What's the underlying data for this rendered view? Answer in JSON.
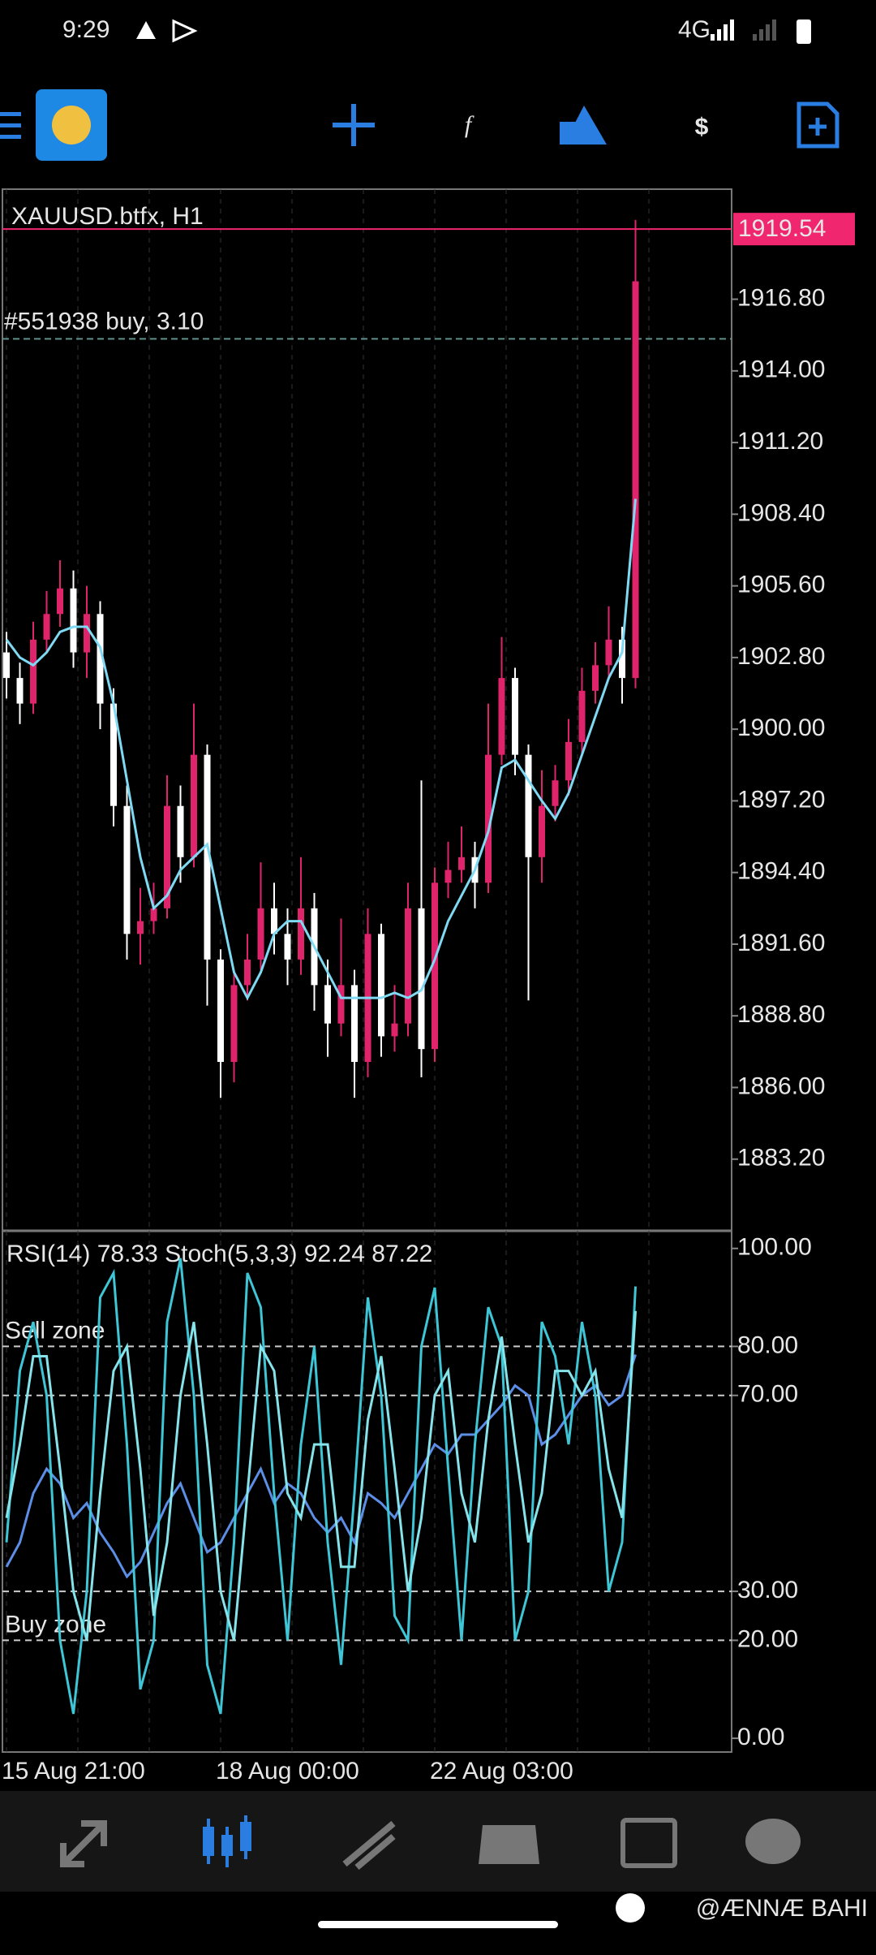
{
  "status_bar": {
    "time": "9:29",
    "network": "4G"
  },
  "chart_data": [
    {
      "type": "candlestick",
      "title": "XAUUSD.btfx, H1",
      "categories": [
        "15 Aug 21:00",
        null,
        null,
        null,
        null,
        null,
        null,
        null,
        null,
        null,
        null,
        null,
        null,
        null,
        null,
        null,
        "18 Aug 00:00",
        null,
        null,
        null,
        null,
        null,
        null,
        null,
        null,
        null,
        null,
        null,
        null,
        null,
        null,
        null,
        "22 Aug 03:00",
        null,
        null,
        null,
        null,
        null,
        null,
        null,
        null,
        null,
        null,
        null,
        null,
        null,
        null,
        null
      ],
      "open": [
        1903,
        1902,
        1901,
        1903.5,
        1904.5,
        1905.5,
        1903,
        1904.5,
        1901,
        1897,
        1892,
        1892.5,
        1893,
        1897,
        1895,
        1899,
        1891,
        1887,
        1890,
        1891,
        1893,
        1892,
        1891,
        1893,
        1890,
        1888.5,
        1890,
        1887,
        1892,
        1888,
        1888.5,
        1893,
        1887.5,
        1894,
        1894.5,
        1895,
        1894,
        1899,
        1902,
        1899,
        1895,
        1897,
        1898,
        1899.5,
        1901.5,
        1902.5,
        1903.5,
        1902
      ],
      "high": [
        1903.8,
        1902.6,
        1904.2,
        1905.4,
        1906.6,
        1906.2,
        1905.6,
        1905,
        1901.6,
        1897.8,
        1893.8,
        1894,
        1898.2,
        1897.8,
        1901,
        1899.4,
        1891.4,
        1890.6,
        1892,
        1894.8,
        1894,
        1893,
        1895,
        1893.6,
        1891,
        1892.6,
        1890.6,
        1893,
        1892.4,
        1890,
        1894,
        1898,
        1894.6,
        1895.6,
        1896.2,
        1895.6,
        1901,
        1903.6,
        1902.4,
        1899.4,
        1898.4,
        1898.6,
        1900.4,
        1902.4,
        1903.4,
        1904.8,
        1904,
        1919.9
      ],
      "low": [
        1901.2,
        1900.2,
        1900.6,
        1903,
        1904,
        1902.4,
        1902,
        1900,
        1896.2,
        1891,
        1890.8,
        1892,
        1892.6,
        1894,
        1894.6,
        1889.2,
        1885.6,
        1886.2,
        1889.4,
        1890.6,
        1891.2,
        1890,
        1890.4,
        1889,
        1887.2,
        1888,
        1885.6,
        1886.4,
        1887.2,
        1887.4,
        1888,
        1886.4,
        1887,
        1893.4,
        1894,
        1893,
        1893.6,
        1898.6,
        1898.2,
        1889.4,
        1894,
        1896.4,
        1897.4,
        1899,
        1901,
        1902,
        1901,
        1901.6
      ],
      "close": [
        1902,
        1901,
        1903.5,
        1904.5,
        1905.5,
        1903,
        1904.5,
        1901,
        1897,
        1892,
        1892.5,
        1893,
        1897,
        1895,
        1899,
        1891,
        1887,
        1890,
        1891,
        1893,
        1892,
        1891,
        1893,
        1890,
        1888.5,
        1890,
        1887,
        1892,
        1888,
        1888.5,
        1893,
        1887.5,
        1894,
        1894.5,
        1895,
        1894,
        1899,
        1902,
        1899,
        1895,
        1897,
        1898,
        1899.5,
        1901.5,
        1902.5,
        1903.5,
        1902,
        1917.5
      ],
      "up_color": "#e0246c",
      "down_color": "#ffffff",
      "series": [
        {
          "color": "#7fd9f2",
          "values": [
            1903.5,
            1902.8,
            1902.5,
            1903,
            1903.8,
            1904,
            1904,
            1903.2,
            1901,
            1898,
            1895,
            1893,
            1893.5,
            1894.5,
            1895,
            1895.5,
            1893,
            1890.5,
            1889.5,
            1890.5,
            1892,
            1892.5,
            1892.5,
            1891.5,
            1890.5,
            1889.5,
            1889.5,
            1889.5,
            1889.5,
            1889.7,
            1889.5,
            1889.8,
            1891,
            1892.5,
            1893.5,
            1894.5,
            1896,
            1898.5,
            1898.8,
            1898,
            1897.2,
            1896.5,
            1897.5,
            1899,
            1900.5,
            1902,
            1903,
            1909
          ]
        }
      ],
      "ylim": [
        1880.4,
        1921.1
      ],
      "yticks": [
        {
          "value": 1916.8,
          "label": "1916.80"
        },
        {
          "value": 1914,
          "label": "1914.00"
        },
        {
          "value": 1911.2,
          "label": "1911.20"
        },
        {
          "value": 1908.4,
          "label": "1908.40"
        },
        {
          "value": 1905.6,
          "label": "1905.60"
        },
        {
          "value": 1902.8,
          "label": "1902.80"
        },
        {
          "value": 1900,
          "label": "1900.00"
        },
        {
          "value": 1897.2,
          "label": "1897.20"
        },
        {
          "value": 1894.4,
          "label": "1894.40"
        },
        {
          "value": 1891.6,
          "label": "1891.60"
        },
        {
          "value": 1888.8,
          "label": "1888.80"
        },
        {
          "value": 1886,
          "label": "1886.00"
        },
        {
          "value": 1883.2,
          "label": "1883.20"
        }
      ],
      "current_price": 1919.54,
      "current_price_color": "#f0266e",
      "order_label": "#551938 buy, 3.10",
      "order_price": 1915.25,
      "grid": true
    },
    {
      "type": "line",
      "title": "RSI(14) 78.33 Stoch(5,3,3) 92.24 87.22",
      "series": [
        {
          "color": "#5c8ee6",
          "values": [
            35,
            40,
            50,
            55,
            52,
            45,
            48,
            42,
            38,
            33,
            36,
            42,
            48,
            52,
            45,
            38,
            40,
            45,
            50,
            55,
            48,
            52,
            50,
            45,
            42,
            45,
            40,
            50,
            48,
            45,
            50,
            55,
            60,
            58,
            62,
            62,
            65,
            68,
            72,
            70,
            60,
            62,
            66,
            70,
            72,
            68,
            70,
            78.33
          ]
        },
        {
          "color": "#3ec6d6",
          "values": [
            40,
            75,
            85,
            70,
            20,
            5,
            30,
            90,
            95,
            60,
            10,
            20,
            85,
            98,
            70,
            15,
            5,
            40,
            95,
            88,
            50,
            20,
            60,
            80,
            40,
            15,
            50,
            90,
            70,
            25,
            20,
            80,
            92,
            55,
            20,
            60,
            88,
            80,
            20,
            30,
            85,
            78,
            60,
            85,
            70,
            30,
            40,
            92.24
          ]
        },
        {
          "color": "#86e3ea",
          "values": [
            45,
            60,
            78,
            78,
            55,
            30,
            20,
            50,
            75,
            80,
            55,
            25,
            40,
            70,
            85,
            60,
            30,
            20,
            50,
            80,
            75,
            50,
            45,
            60,
            60,
            35,
            35,
            65,
            78,
            55,
            30,
            45,
            70,
            75,
            50,
            40,
            65,
            82,
            60,
            40,
            50,
            75,
            75,
            70,
            75,
            55,
            45,
            87.22
          ]
        }
      ],
      "ylim": [
        -2.8,
        103.6
      ],
      "yticks": [
        {
          "value": 100,
          "label": "100.00"
        },
        {
          "value": 80,
          "label": "80.00"
        },
        {
          "value": 70,
          "label": "70.00"
        },
        {
          "value": 30,
          "label": "30.00"
        },
        {
          "value": 20,
          "label": "20.00"
        },
        {
          "value": 0,
          "label": "0.00"
        }
      ],
      "levels": [
        {
          "value": 80,
          "label": "Sell zone"
        },
        {
          "value": 70
        },
        {
          "value": 30
        },
        {
          "value": 20,
          "label": "Buy zone"
        }
      ]
    }
  ],
  "watermark": "@ÆNNÆ BAHI"
}
